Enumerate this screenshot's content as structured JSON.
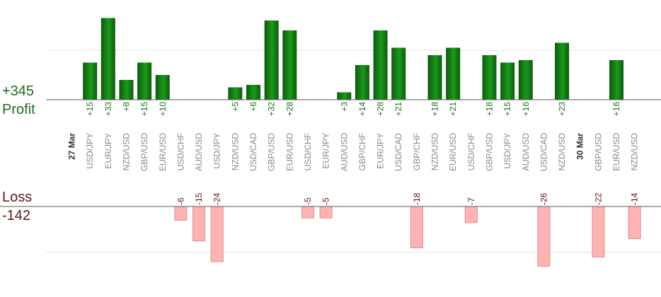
{
  "summary": {
    "profit_total": "+345",
    "profit_label": "Profit",
    "loss_label": "Loss",
    "loss_total": "-142"
  },
  "colors": {
    "profit_bar_dark": "#0d5a0d",
    "profit_bar_light": "#1a9a1a",
    "profit_text": "#1e6e1e",
    "loss_bar_fill": "#ffb3b3",
    "loss_bar_stroke": "#e58a8a",
    "loss_text": "#5a1a1a",
    "axis_line": "#5a5a5a",
    "grid_line": "#e6e6e6",
    "category_text": "#888888"
  },
  "chart_data": {
    "type": "bar",
    "series": [
      {
        "name": "Profit",
        "values": [
          null,
          15,
          33,
          8,
          15,
          10,
          null,
          null,
          null,
          5,
          6,
          32,
          28,
          null,
          null,
          3,
          14,
          28,
          21,
          null,
          18,
          21,
          null,
          18,
          15,
          16,
          null,
          23,
          null,
          null,
          16,
          null
        ]
      },
      {
        "name": "Loss",
        "values": [
          null,
          null,
          null,
          null,
          null,
          null,
          -6,
          -15,
          -24,
          null,
          null,
          null,
          null,
          -5,
          -5,
          null,
          null,
          null,
          null,
          -18,
          null,
          null,
          -7,
          null,
          null,
          null,
          -26,
          null,
          null,
          -22,
          null,
          -14
        ]
      }
    ],
    "categories": [
      "27 Mar",
      "USD/JPY",
      "EUR/JPY",
      "NZD/USD",
      "GBP/USD",
      "EUR/USD",
      "USD/CHF",
      "AUD/USD",
      "USD/JPY",
      "NZD/USD",
      "USD/CAD",
      "GBP/USD",
      "EUR/USD",
      "USD/CHF",
      "EUR/JPY",
      "AUD/USD",
      "GBP/CHF",
      "EUR/JPY",
      "USD/CAD",
      "GBP/CHF",
      "NZD/USD",
      "EUR/USD",
      "USD/CHF",
      "GBP/USD",
      "USD/JPY",
      "AUD/USD",
      "USD/CAD",
      "NZD/USD",
      "30 Mar",
      "GBP/USD",
      "EUR/USD",
      "NZD/USD"
    ],
    "date_separators": [
      "27 Mar",
      "30 Mar"
    ],
    "data_labels": {
      "profit": [
        "",
        "+15",
        "+33",
        "+8",
        "+15",
        "+10",
        "",
        "",
        "",
        "+5",
        "+6",
        "+32",
        "+28",
        "",
        "",
        "+3",
        "+14",
        "+28",
        "+21",
        "",
        "+18",
        "+21",
        "",
        "+18",
        "+15",
        "+16",
        "",
        "+23",
        "",
        "",
        "+16",
        ""
      ],
      "loss": [
        "",
        "",
        "",
        "",
        "",
        "",
        "-6",
        "-15",
        "-24",
        "",
        "",
        "",
        "",
        "-5",
        "-5",
        "",
        "",
        "",
        "",
        "-18",
        "",
        "",
        "-7",
        "",
        "",
        "",
        "-26",
        "",
        "",
        "-22",
        "",
        "-14"
      ]
    },
    "profit_axis_range": [
      0,
      20
    ],
    "loss_axis_range": [
      -20,
      0
    ],
    "grid": true
  }
}
